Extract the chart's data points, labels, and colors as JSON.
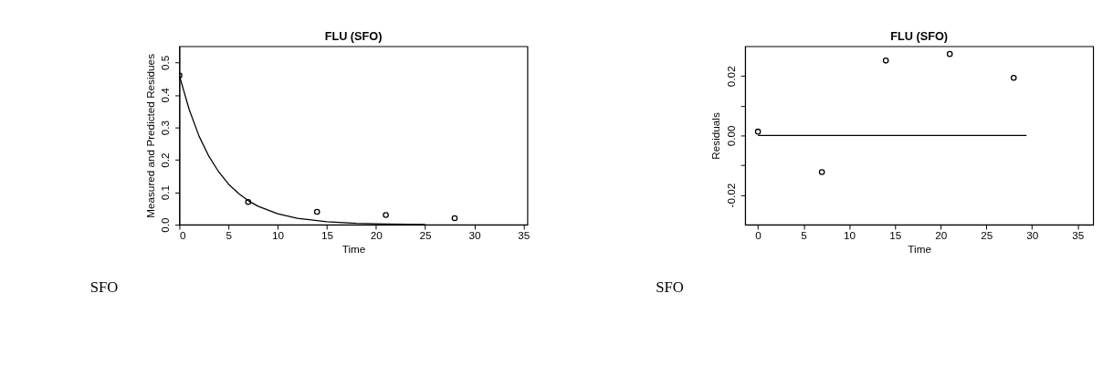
{
  "chart_data": [
    {
      "type": "scatter",
      "title": "FLU (SFO)",
      "xlabel": "Time",
      "ylabel": "Measured and Predicted Residues",
      "xlim": [
        0,
        35.4
      ],
      "ylim": [
        0,
        0.55
      ],
      "xticks": [
        0,
        5,
        10,
        15,
        20,
        25,
        30,
        35
      ],
      "yticks": [
        {
          "value": 0,
          "label": "0.0"
        },
        {
          "value": 0.1,
          "label": "0.1"
        },
        {
          "value": 0.2,
          "label": "0.2"
        },
        {
          "value": 0.3,
          "label": "0.3"
        },
        {
          "value": 0.4,
          "label": "0.4"
        },
        {
          "value": 0.5,
          "label": "0.5"
        }
      ],
      "grid": false,
      "annotations": [
        "SFO"
      ],
      "series": [
        {
          "type": "scatter",
          "color": "#000000",
          "marker": "circle",
          "x": [
            0,
            7,
            14,
            21,
            28
          ],
          "values": [
            0.46,
            0.07,
            0.04,
            0.03,
            0.02
          ]
        },
        {
          "type": "line",
          "color": "#000000",
          "x": [
            0,
            1,
            2,
            3,
            4,
            5,
            6,
            7,
            8,
            10,
            12,
            15,
            18,
            21,
            25
          ],
          "values": [
            0.46,
            0.355,
            0.273,
            0.211,
            0.163,
            0.125,
            0.097,
            0.074,
            0.057,
            0.034,
            0.02,
            0.009,
            0.004,
            0.002,
            0.001
          ]
        }
      ]
    },
    {
      "type": "scatter",
      "title": "FLU (SFO)",
      "xlabel": "Time",
      "ylabel": "Residuals",
      "xlim": [
        -1.4,
        36.7
      ],
      "ylim": [
        -0.03,
        0.03
      ],
      "xticks": [
        0,
        5,
        10,
        15,
        20,
        25,
        30,
        35
      ],
      "yticks": [
        {
          "value": -0.02,
          "label": "-0.02"
        },
        {
          "value": -0.01,
          "label": null
        },
        {
          "value": 0,
          "label": "0.00"
        },
        {
          "value": 0.01,
          "label": null
        },
        {
          "value": 0.02,
          "label": "0.02"
        }
      ],
      "grid": false,
      "annotations": [
        "SFO"
      ],
      "series": [
        {
          "type": "scatter",
          "color": "#000000",
          "marker": "circle",
          "x": [
            0,
            7,
            14,
            21,
            28
          ],
          "values": [
            0.0013,
            -0.0123,
            0.0252,
            0.0274,
            0.0194
          ]
        },
        {
          "type": "line",
          "color": "#000000",
          "x": [
            0,
            29.4
          ],
          "values": [
            0,
            0
          ]
        }
      ]
    }
  ]
}
